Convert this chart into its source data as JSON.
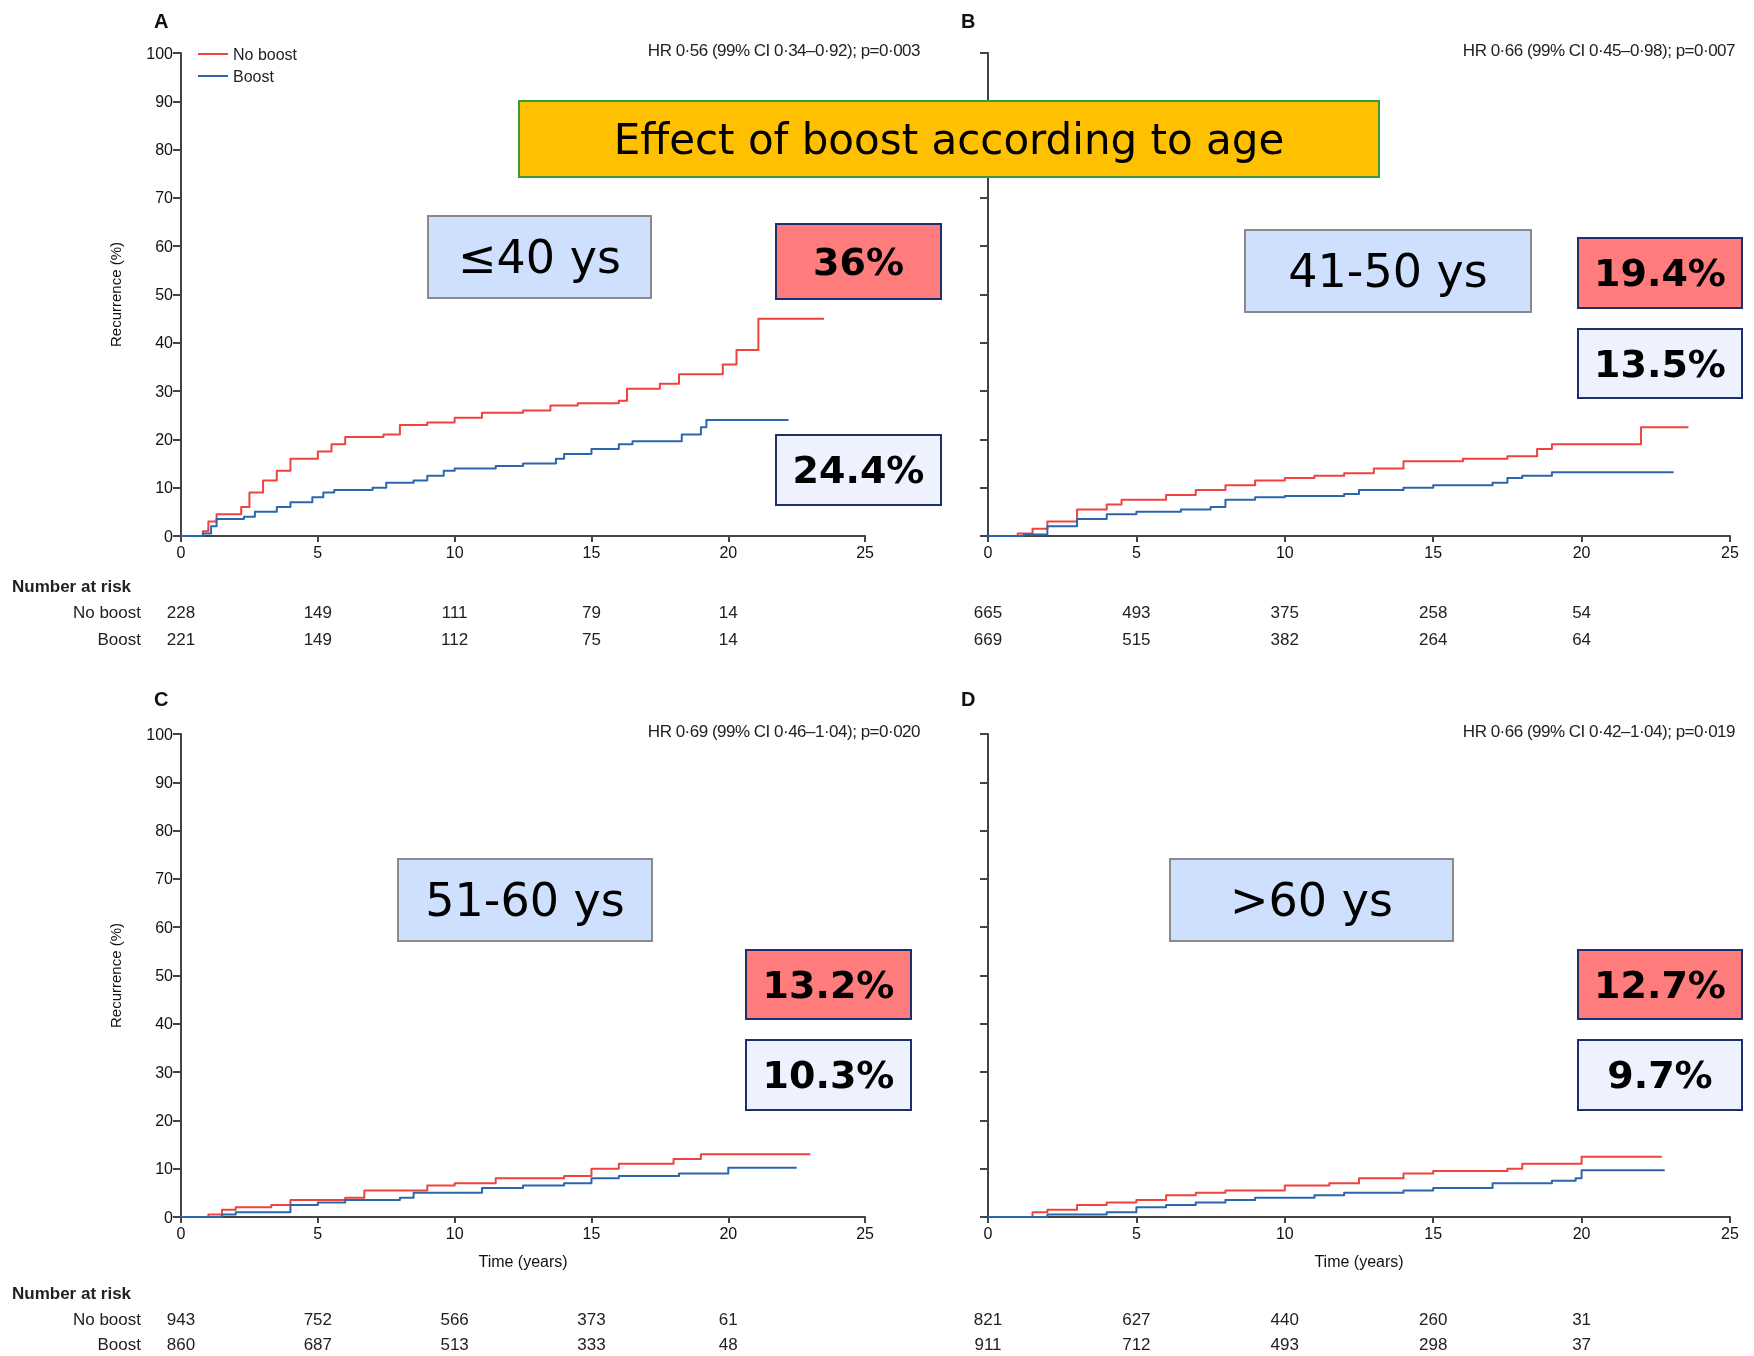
{
  "chart_data": [
    {
      "type": "step",
      "title": "A",
      "ylabel": "Recurrence (%)",
      "legend": "top left",
      "tick_labels": true,
      "xlim": [
        0,
        25
      ],
      "xticks": [
        0,
        5,
        10,
        15,
        20,
        25
      ],
      "ylim": [
        0,
        100
      ],
      "yticks": [
        0,
        10,
        20,
        30,
        40,
        50,
        60,
        70,
        80,
        90,
        100
      ],
      "annotations": [
        "HR 0·56 (99% CI 0·34–0·92); p=0·003",
        "≤40 ys",
        "36%",
        "24.4%",
        "Number at risk",
        "No boost",
        "228",
        "149",
        "111",
        "79",
        "14",
        "Boost",
        "221",
        "149",
        "112",
        "75",
        "14",
        "Effect of boost according to age"
      ],
      "series": [
        {
          "name": "No boost",
          "color": "#f0433e",
          "x": [
            0,
            0.8,
            1.0,
            1.3,
            2.2,
            2.5,
            3,
            3.5,
            4,
            5,
            5.5,
            6,
            7.4,
            8,
            9,
            10,
            11,
            12.5,
            13.5,
            14.5,
            16,
            16.3,
            17.5,
            18.2,
            19.8,
            20.3,
            21.1,
            23.5
          ],
          "values": [
            0,
            1,
            3,
            4.5,
            6,
            9,
            11.5,
            13.5,
            16,
            17.5,
            19,
            20.5,
            21,
            23,
            23.5,
            24.5,
            25.5,
            26,
            27,
            27.5,
            28,
            30.5,
            31.5,
            33.5,
            35.5,
            38.5,
            45,
            45
          ]
        },
        {
          "name": "Boost",
          "color": "#2a67ad",
          "x": [
            0,
            0.8,
            1.1,
            1.3,
            2.3,
            2.7,
            3.5,
            4,
            4.8,
            5.2,
            5.6,
            7,
            7.5,
            8.5,
            9,
            9.6,
            10,
            11.5,
            12.5,
            13.7,
            14,
            15,
            16,
            16.5,
            18.3,
            19,
            19.2,
            22.2
          ],
          "values": [
            0,
            0.5,
            2,
            3.5,
            4,
            5,
            6,
            7,
            8,
            9,
            9.5,
            10,
            11,
            11.5,
            12.5,
            13.5,
            14,
            14.5,
            15,
            16,
            17,
            18,
            19,
            19.6,
            21,
            22.5,
            24,
            24
          ]
        }
      ]
    },
    {
      "type": "step",
      "title": "B",
      "tick_labels": "x",
      "xlim": [
        0,
        25
      ],
      "xticks": [
        0,
        5,
        10,
        15,
        20,
        25
      ],
      "ylim": [
        0,
        100
      ],
      "yticks": [
        0,
        10,
        20,
        30,
        40,
        50,
        60,
        70,
        80,
        90,
        100
      ],
      "annotations": [
        "HR 0·66 (99% CI 0·45–0·98); p=0·007",
        "41-50 ys",
        "19.4%",
        "13.5%",
        "665",
        "493",
        "375",
        "258",
        "54",
        "669",
        "515",
        "382",
        "264",
        "64"
      ],
      "series": [
        {
          "color": "#f0433e",
          "x": [
            0,
            1,
            1.5,
            2,
            3,
            4,
            4.5,
            6,
            7,
            8,
            9,
            10,
            11,
            12,
            13,
            14,
            16,
            17.5,
            18.5,
            19,
            22,
            23.6
          ],
          "values": [
            0,
            0.5,
            1.5,
            3,
            5.5,
            6.5,
            7.5,
            8.5,
            9.5,
            10.5,
            11.5,
            12,
            12.5,
            13,
            14,
            15.5,
            16,
            16.5,
            18,
            19,
            22.5,
            22.5
          ]
        },
        {
          "color": "#2a67ad",
          "x": [
            0,
            1.2,
            2,
            3,
            4,
            5,
            6.5,
            7.5,
            8,
            9,
            10,
            12,
            12.5,
            14,
            15,
            17,
            17.5,
            18,
            19,
            23.1
          ],
          "values": [
            0,
            0.3,
            2,
            3.5,
            4.5,
            5,
            5.5,
            6,
            7.5,
            8,
            8.3,
            8.7,
            9.5,
            10,
            10.5,
            11,
            12,
            12.5,
            13.2,
            13.2
          ]
        }
      ]
    },
    {
      "type": "step",
      "title": "C",
      "ylabel": "Recurrence (%)",
      "xlabel": "Time (years)",
      "tick_labels": true,
      "xlim": [
        0,
        25
      ],
      "xticks": [
        0,
        5,
        10,
        15,
        20,
        25
      ],
      "ylim": [
        0,
        100
      ],
      "yticks": [
        0,
        10,
        20,
        30,
        40,
        50,
        60,
        70,
        80,
        90,
        100
      ],
      "annotations": [
        "HR 0·69 (99% CI 0·46–1·04); p=0·020",
        "51-60 ys",
        "13.2%",
        "10.3%",
        "Number at risk",
        "No boost",
        "943",
        "752",
        "566",
        "373",
        "61",
        "Boost",
        "860",
        "687",
        "513",
        "333",
        "48"
      ],
      "series": [
        {
          "color": "#f0433e",
          "x": [
            0,
            1,
            1.5,
            2,
            3.3,
            4,
            6,
            6.7,
            9,
            10,
            11.5,
            14,
            15,
            16,
            18,
            19,
            23
          ],
          "values": [
            0,
            0.5,
            1.5,
            2,
            2.5,
            3.5,
            4,
            5.5,
            6.5,
            7,
            8,
            8.5,
            10,
            11,
            12,
            13,
            13
          ]
        },
        {
          "color": "#2a67ad",
          "x": [
            0,
            1.5,
            2,
            4,
            5,
            6,
            8,
            8.5,
            10,
            11,
            12.5,
            14,
            15,
            16,
            18.2,
            20,
            22.5
          ],
          "values": [
            0,
            0.5,
            1,
            2.5,
            3,
            3.5,
            4,
            5,
            5,
            6,
            6.5,
            7,
            8,
            8.5,
            9,
            10.2,
            10.2
          ]
        }
      ]
    },
    {
      "type": "step",
      "title": "D",
      "xlabel": "Time (years)",
      "tick_labels": "x",
      "xlim": [
        0,
        25
      ],
      "xticks": [
        0,
        5,
        10,
        15,
        20,
        25
      ],
      "ylim": [
        0,
        100
      ],
      "yticks": [
        0,
        10,
        20,
        30,
        40,
        50,
        60,
        70,
        80,
        90,
        100
      ],
      "annotations": [
        "HR 0·66 (99% CI 0·42–1·04); p=0·019",
        ">60 ys",
        "12.7%",
        "9.7%",
        "821",
        "627",
        "440",
        "260",
        "31",
        "911",
        "712",
        "493",
        "298",
        "37"
      ],
      "series": [
        {
          "color": "#f0433e",
          "x": [
            0,
            1.5,
            2,
            3,
            4,
            5,
            6,
            7,
            8,
            10,
            11.5,
            12.5,
            14,
            15,
            17.5,
            18,
            20,
            22.7
          ],
          "values": [
            0,
            1,
            1.5,
            2.5,
            3,
            3.5,
            4.5,
            5,
            5.5,
            6.5,
            7,
            8,
            9,
            9.5,
            10,
            11,
            12.5,
            12.5
          ]
        },
        {
          "color": "#2a67ad",
          "x": [
            0,
            2,
            4,
            5,
            6,
            7,
            8,
            9,
            11,
            12,
            14,
            15,
            17,
            19,
            19.8,
            20,
            22.8
          ],
          "values": [
            0,
            0.5,
            1,
            2,
            2.5,
            3,
            3.5,
            4,
            4.5,
            5,
            5.5,
            6,
            7,
            7.5,
            8,
            9.7,
            9.7
          ]
        }
      ]
    }
  ]
}
